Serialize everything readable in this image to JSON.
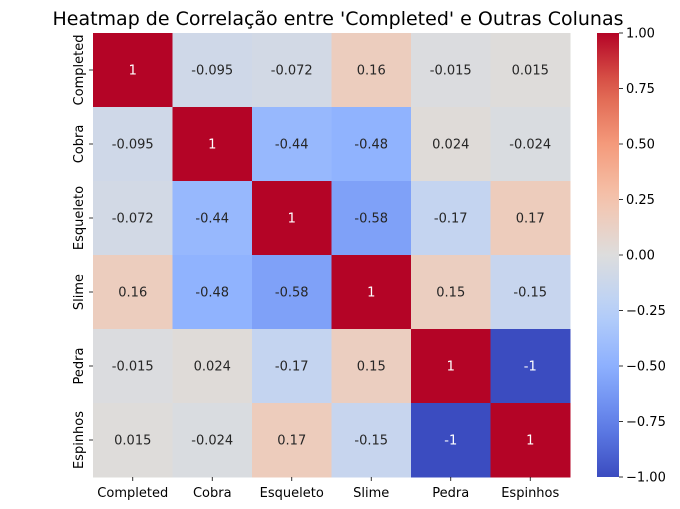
{
  "chart_data": {
    "type": "heatmap",
    "title": "Heatmap de Correlação entre 'Completed' e Outras Colunas",
    "x_labels": [
      "Completed",
      "Cobra",
      "Esqueleto",
      "Slime",
      "Pedra",
      "Espinhos"
    ],
    "y_labels": [
      "Completed",
      "Cobra",
      "Esqueleto",
      "Slime",
      "Pedra",
      "Espinhos"
    ],
    "values": [
      [
        1,
        -0.095,
        -0.072,
        0.16,
        -0.015,
        0.015
      ],
      [
        -0.095,
        1,
        -0.44,
        -0.48,
        0.024,
        -0.024
      ],
      [
        -0.072,
        -0.44,
        1,
        -0.58,
        -0.17,
        0.17
      ],
      [
        0.16,
        -0.48,
        -0.58,
        1,
        0.15,
        -0.15
      ],
      [
        -0.015,
        0.024,
        -0.17,
        0.15,
        1,
        -1
      ],
      [
        0.015,
        -0.024,
        0.17,
        -0.15,
        -1,
        1
      ]
    ],
    "annotations": [
      [
        "1",
        "-0.095",
        "-0.072",
        "0.16",
        "-0.015",
        "0.015"
      ],
      [
        "-0.095",
        "1",
        "-0.44",
        "-0.48",
        "0.024",
        "-0.024"
      ],
      [
        "-0.072",
        "-0.44",
        "1",
        "-0.58",
        "-0.17",
        "0.17"
      ],
      [
        "0.16",
        "-0.48",
        "-0.58",
        "1",
        "0.15",
        "-0.15"
      ],
      [
        "-0.015",
        "0.024",
        "-0.17",
        "0.15",
        "1",
        "-1"
      ],
      [
        "0.015",
        "-0.024",
        "0.17",
        "-0.15",
        "-1",
        "1"
      ]
    ],
    "colormap": "coolwarm",
    "vmin": -1,
    "vmax": 1,
    "colorbar_ticks": [
      1.0,
      0.75,
      0.5,
      0.25,
      0.0,
      -0.25,
      -0.5,
      -0.75,
      -1.0
    ],
    "colorbar_tick_labels": [
      "1.00",
      "0.75",
      "0.50",
      "0.25",
      "0.00",
      "−0.25",
      "−0.50",
      "−0.75",
      "−1.00"
    ],
    "grid": false
  }
}
